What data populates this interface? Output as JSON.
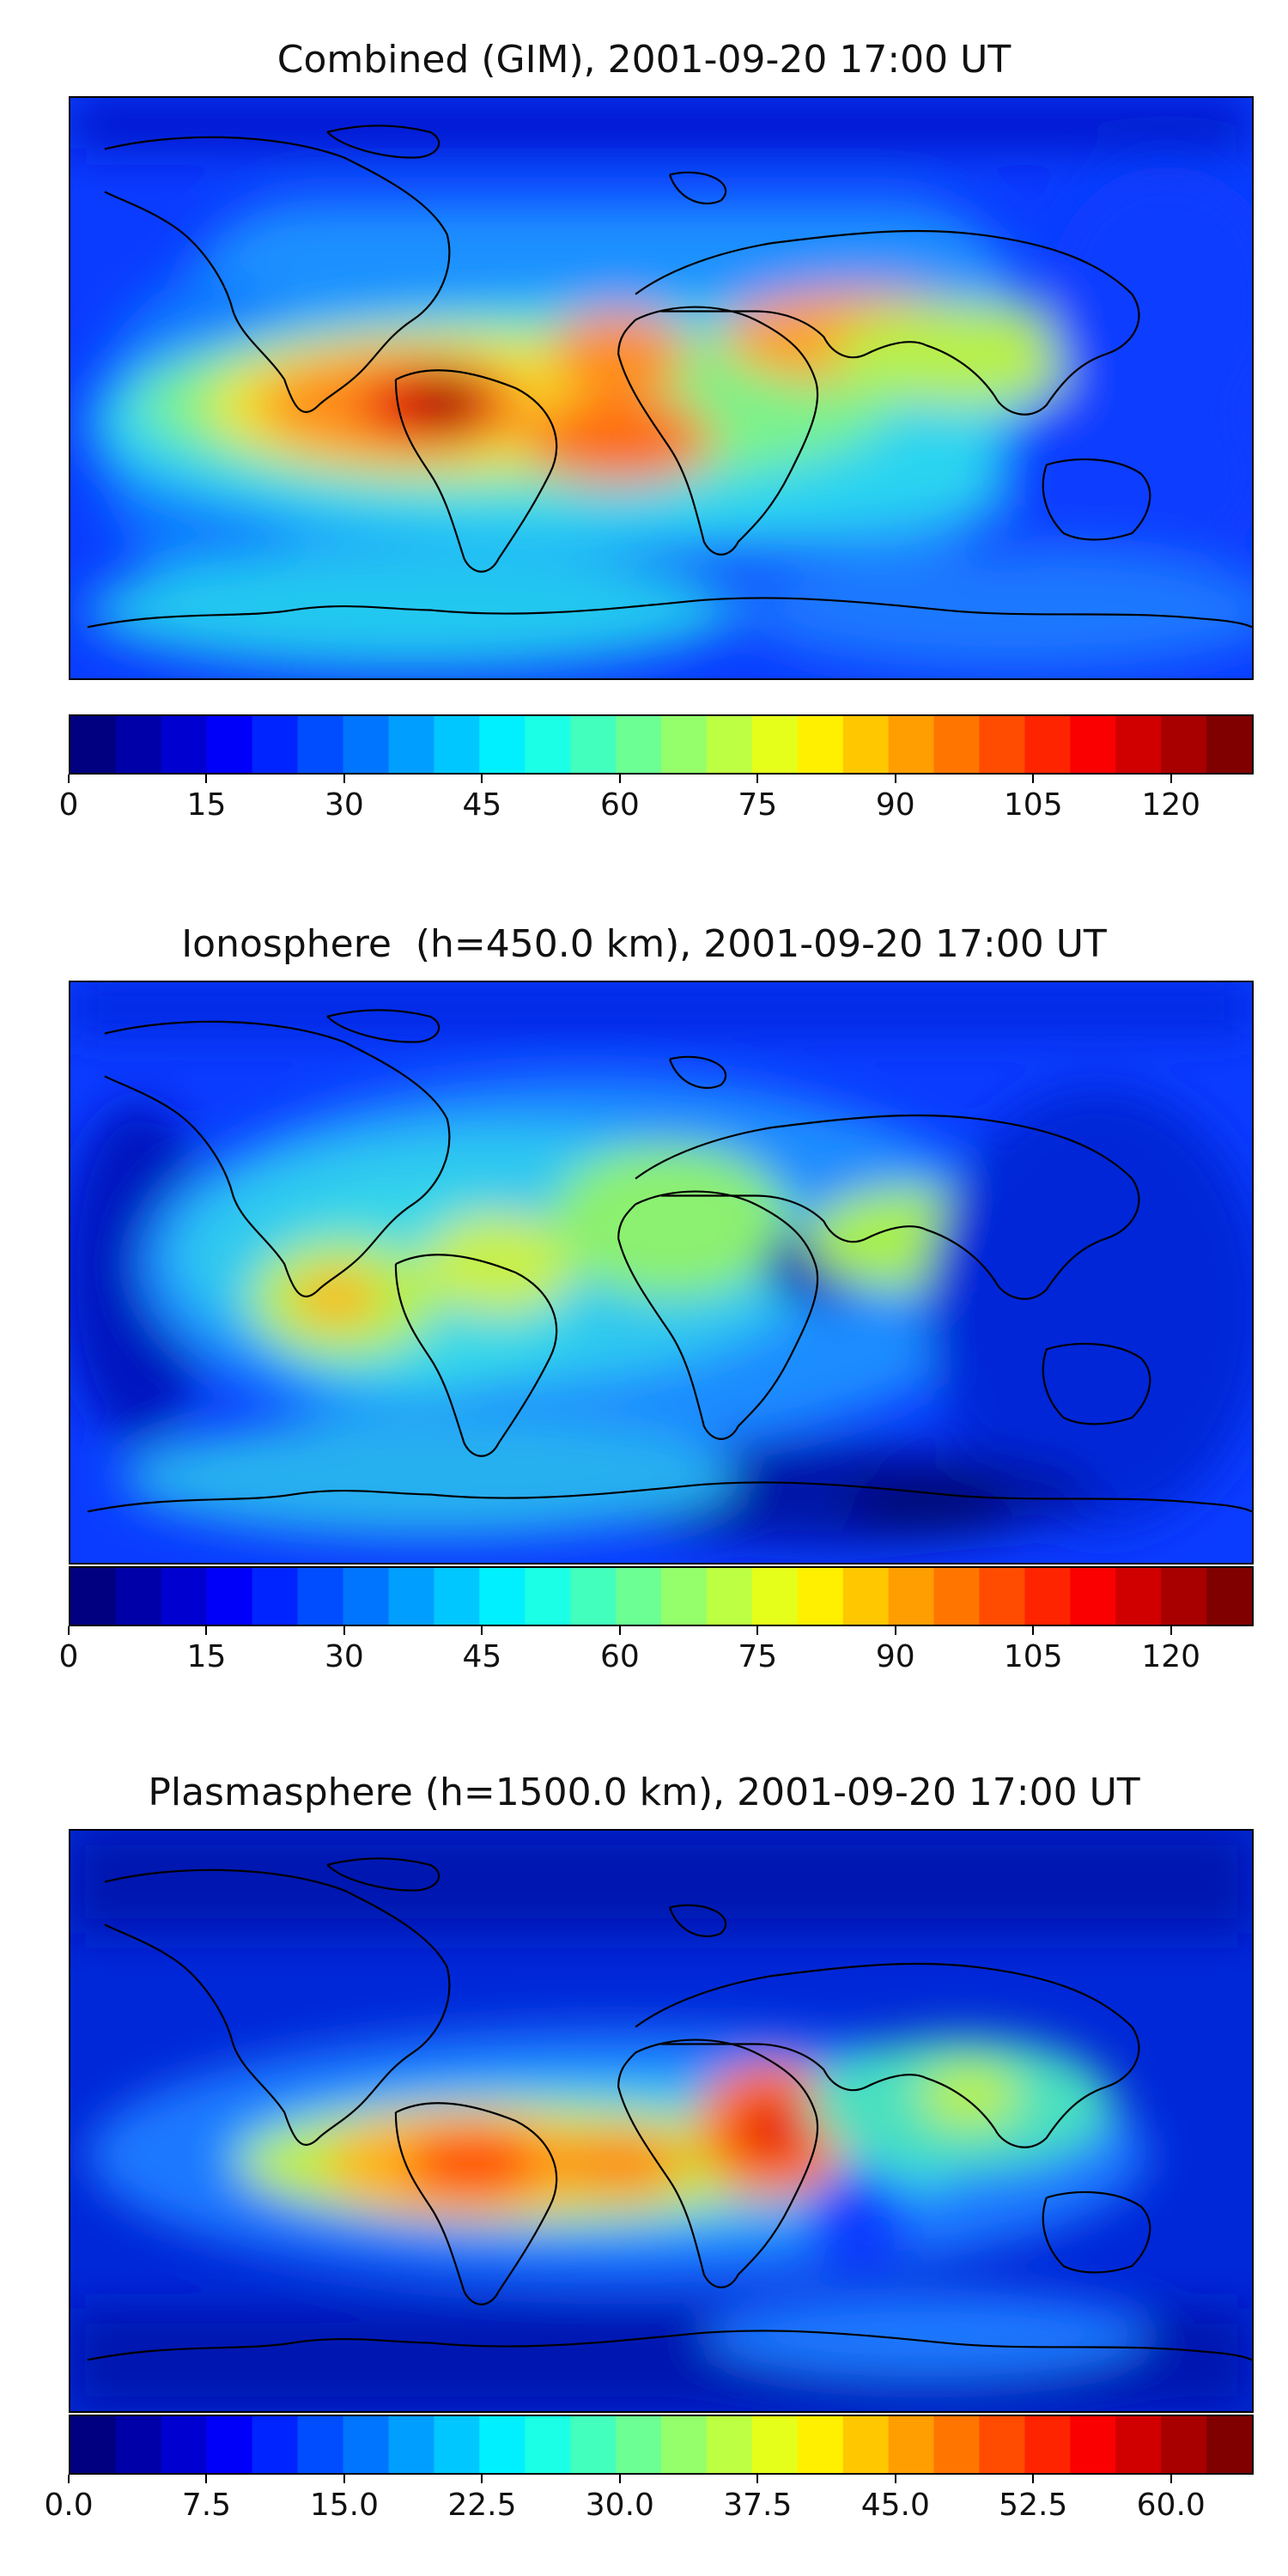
{
  "panels": [
    {
      "title": "Combined (GIM), 2001-09-20 17:00 UT",
      "colorbar": {
        "min": 0,
        "max": 129,
        "tick_values": [
          0,
          15,
          30,
          45,
          60,
          75,
          90,
          105,
          120
        ],
        "tick_labels": [
          "0",
          "15",
          "30",
          "45",
          "60",
          "75",
          "90",
          "105",
          "120"
        ]
      }
    },
    {
      "title": "Ionosphere  (h=450.0 km), 2001-09-20 17:00 UT",
      "colorbar": {
        "min": 0,
        "max": 129,
        "tick_values": [
          0,
          15,
          30,
          45,
          60,
          75,
          90,
          105,
          120
        ],
        "tick_labels": [
          "0",
          "15",
          "30",
          "45",
          "60",
          "75",
          "90",
          "105",
          "120"
        ]
      }
    },
    {
      "title": "Plasmasphere (h=1500.0 km), 2001-09-20 17:00 UT",
      "colorbar": {
        "min": 0,
        "max": 64.5,
        "tick_values": [
          0,
          7.5,
          15,
          22.5,
          30,
          37.5,
          45,
          52.5,
          60
        ],
        "tick_labels": [
          "0.0",
          "7.5",
          "15.0",
          "22.5",
          "30.0",
          "37.5",
          "45.0",
          "52.5",
          "60.0"
        ]
      }
    }
  ],
  "colormap": "jet",
  "colormap_levels": 26,
  "projection": "PlateCarree"
}
